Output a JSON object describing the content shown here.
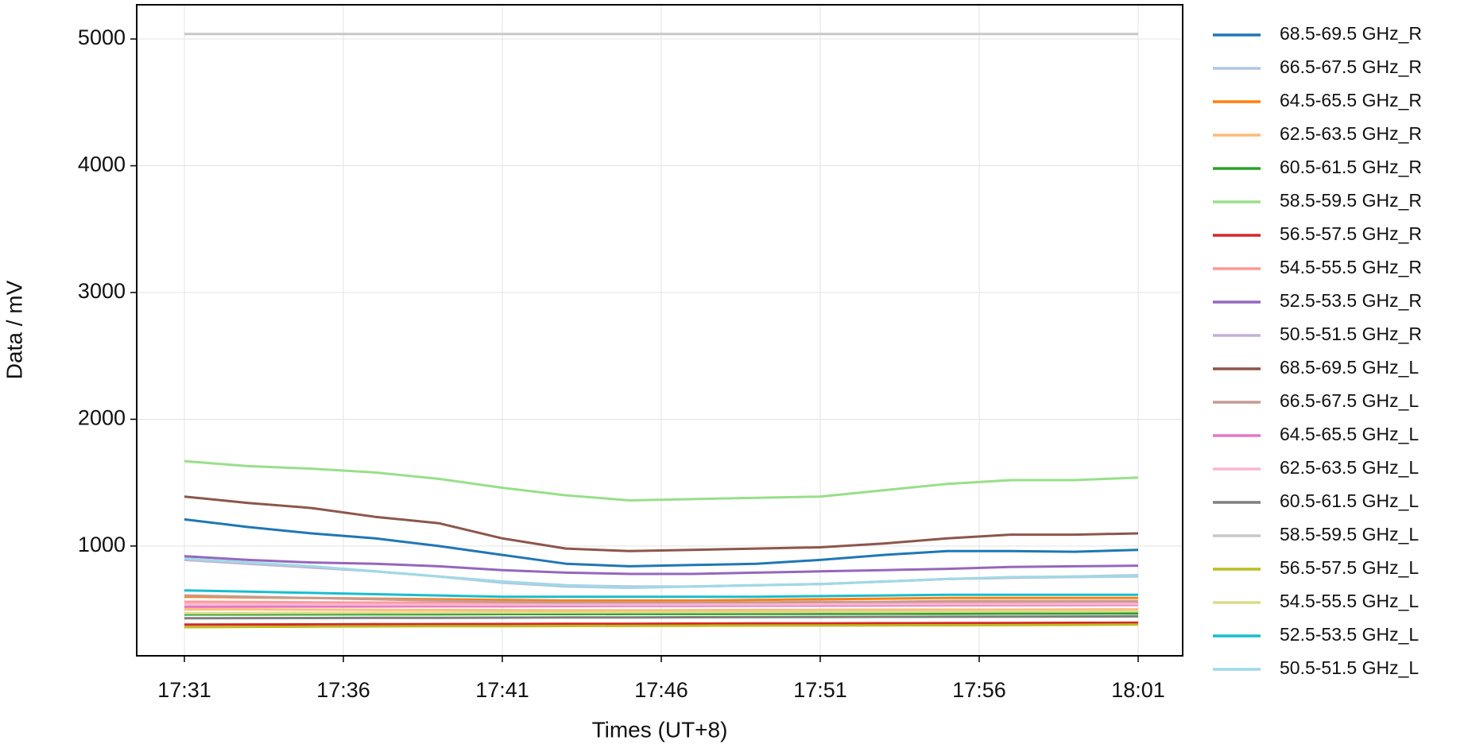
{
  "chart_data": {
    "type": "line",
    "x_label": "Times (UT+8)",
    "y_label": "Data / mV",
    "x": [
      "17:31",
      "17:33",
      "17:35",
      "17:37",
      "17:39",
      "17:41",
      "17:43",
      "17:45",
      "17:47",
      "17:49",
      "17:51",
      "17:53",
      "17:55",
      "17:57",
      "17:59",
      "18:01"
    ],
    "xlim": [
      "17:29:30",
      "18:02:24"
    ],
    "xticks": [
      "17:31",
      "17:36",
      "17:41",
      "17:46",
      "17:51",
      "17:56",
      "18:01"
    ],
    "ylim": [
      134,
      5270
    ],
    "yticks": [
      1000,
      2000,
      3000,
      4000,
      5000
    ],
    "grid": true,
    "legend": "right",
    "series": [
      {
        "name": "68.5-69.5 GHz_R",
        "color": "#1f77b4",
        "values": [
          1210,
          1150,
          1100,
          1060,
          1000,
          930,
          860,
          840,
          850,
          860,
          890,
          930,
          960,
          960,
          955,
          970
        ]
      },
      {
        "name": "66.5-67.5 GHz_R",
        "color": "#aec7e8",
        "values": [
          900,
          870,
          840,
          800,
          760,
          710,
          680,
          670,
          680,
          690,
          700,
          720,
          740,
          750,
          755,
          760
        ]
      },
      {
        "name": "64.5-65.5 GHz_R",
        "color": "#ff7f0e",
        "values": [
          600,
          595,
          590,
          585,
          580,
          575,
          570,
          570,
          570,
          575,
          580,
          585,
          590,
          590,
          590,
          590
        ]
      },
      {
        "name": "62.5-63.5 GHz_R",
        "color": "#ffbb78",
        "values": [
          500,
          500,
          498,
          496,
          495,
          494,
          493,
          493,
          494,
          495,
          496,
          497,
          498,
          498,
          499,
          500
        ]
      },
      {
        "name": "60.5-61.5 GHz_R",
        "color": "#2ca02c",
        "values": [
          460,
          460,
          461,
          462,
          462,
          463,
          463,
          464,
          464,
          465,
          465,
          466,
          466,
          467,
          467,
          468
        ]
      },
      {
        "name": "58.5-59.5 GHz_R",
        "color": "#98df8a",
        "values": [
          1670,
          1630,
          1610,
          1580,
          1530,
          1460,
          1400,
          1360,
          1370,
          1380,
          1390,
          1440,
          1490,
          1520,
          1520,
          1540
        ]
      },
      {
        "name": "56.5-57.5 GHz_R",
        "color": "#d62728",
        "values": [
          380,
          381,
          382,
          383,
          384,
          385,
          386,
          387,
          388,
          389,
          390,
          391,
          392,
          393,
          394,
          395
        ]
      },
      {
        "name": "54.5-55.5 GHz_R",
        "color": "#ff9896",
        "values": [
          560,
          558,
          556,
          554,
          552,
          550,
          548,
          548,
          549,
          550,
          552,
          554,
          556,
          557,
          558,
          560
        ]
      },
      {
        "name": "52.5-53.5 GHz_R",
        "color": "#9467bd",
        "values": [
          920,
          890,
          870,
          860,
          840,
          810,
          790,
          780,
          780,
          790,
          800,
          810,
          820,
          835,
          840,
          845
        ]
      },
      {
        "name": "50.5-51.5 GHz_R",
        "color": "#c5b0d5",
        "values": [
          890,
          860,
          830,
          800,
          760,
          720,
          690,
          680,
          680,
          690,
          700,
          720,
          740,
          750,
          760,
          770
        ]
      },
      {
        "name": "68.5-69.5 GHz_L",
        "color": "#8c564b",
        "values": [
          1390,
          1340,
          1300,
          1230,
          1180,
          1060,
          980,
          960,
          970,
          980,
          990,
          1020,
          1060,
          1090,
          1090,
          1100
        ]
      },
      {
        "name": "66.5-67.5 GHz_L",
        "color": "#c49c94",
        "values": [
          610,
          600,
          590,
          580,
          570,
          560,
          555,
          555,
          555,
          555,
          560,
          560,
          565,
          565,
          565,
          565
        ]
      },
      {
        "name": "64.5-65.5 GHz_L",
        "color": "#e377c2",
        "values": [
          520,
          521,
          522,
          523,
          524,
          525,
          526,
          527,
          528,
          529,
          530,
          531,
          532,
          533,
          534,
          535
        ]
      },
      {
        "name": "62.5-63.5 GHz_L",
        "color": "#f7b6d2",
        "values": [
          540,
          540,
          539,
          538,
          537,
          536,
          536,
          536,
          537,
          538,
          539,
          540,
          541,
          541,
          542,
          542
        ]
      },
      {
        "name": "60.5-61.5 GHz_L",
        "color": "#7f7f7f",
        "values": [
          430,
          431,
          432,
          433,
          434,
          435,
          436,
          437,
          438,
          439,
          440,
          441,
          442,
          443,
          444,
          445
        ]
      },
      {
        "name": "58.5-59.5 GHz_L",
        "color": "#c7c7c7",
        "values": [
          5040,
          5040,
          5040,
          5040,
          5040,
          5040,
          5040,
          5040,
          5040,
          5040,
          5040,
          5040,
          5040,
          5040,
          5040,
          5040
        ]
      },
      {
        "name": "56.5-57.5 GHz_L",
        "color": "#bcbd22",
        "values": [
          360,
          362,
          364,
          366,
          367,
          368,
          369,
          370,
          371,
          372,
          373,
          374,
          375,
          376,
          378,
          380
        ]
      },
      {
        "name": "54.5-55.5 GHz_L",
        "color": "#dbdb8d",
        "values": [
          470,
          471,
          472,
          473,
          474,
          475,
          476,
          477,
          478,
          479,
          480,
          481,
          482,
          483,
          484,
          485
        ]
      },
      {
        "name": "52.5-53.5 GHz_L",
        "color": "#17becf",
        "values": [
          650,
          640,
          630,
          620,
          610,
          600,
          600,
          600,
          600,
          600,
          605,
          610,
          615,
          615,
          615,
          615
        ]
      },
      {
        "name": "50.5-51.5 GHz_L",
        "color": "#9edae5",
        "values": [
          900,
          870,
          840,
          800,
          760,
          720,
          690,
          675,
          680,
          690,
          700,
          720,
          740,
          755,
          760,
          765
        ]
      }
    ]
  }
}
